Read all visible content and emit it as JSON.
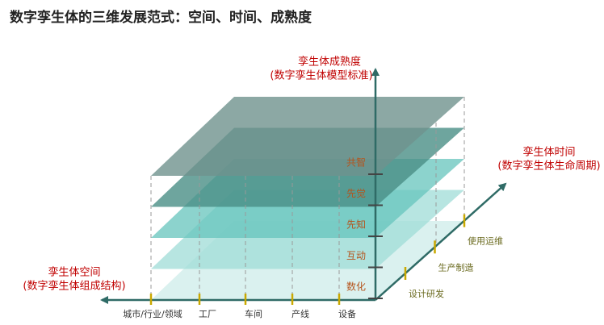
{
  "title": "数字孪生体的三维发展范式：空间、时间、成熟度",
  "maturity_axis": {
    "label": "孪生体成熟度",
    "sublabel": "(数字孪生体模型标准)",
    "levels": [
      "数化",
      "互动",
      "先知",
      "先觉",
      "共智"
    ]
  },
  "time_axis": {
    "label": "孪生体时间",
    "sublabel": "(数字孪生体生命周期)",
    "ticks": [
      "设计研发",
      "生产制造",
      "使用运维"
    ]
  },
  "space_axis": {
    "label": "孪生体空间",
    "sublabel": "(数字孪生体组成结构)",
    "ticks": [
      "城市/行业/领域",
      "工厂",
      "车间",
      "产线",
      "设备"
    ]
  }
}
